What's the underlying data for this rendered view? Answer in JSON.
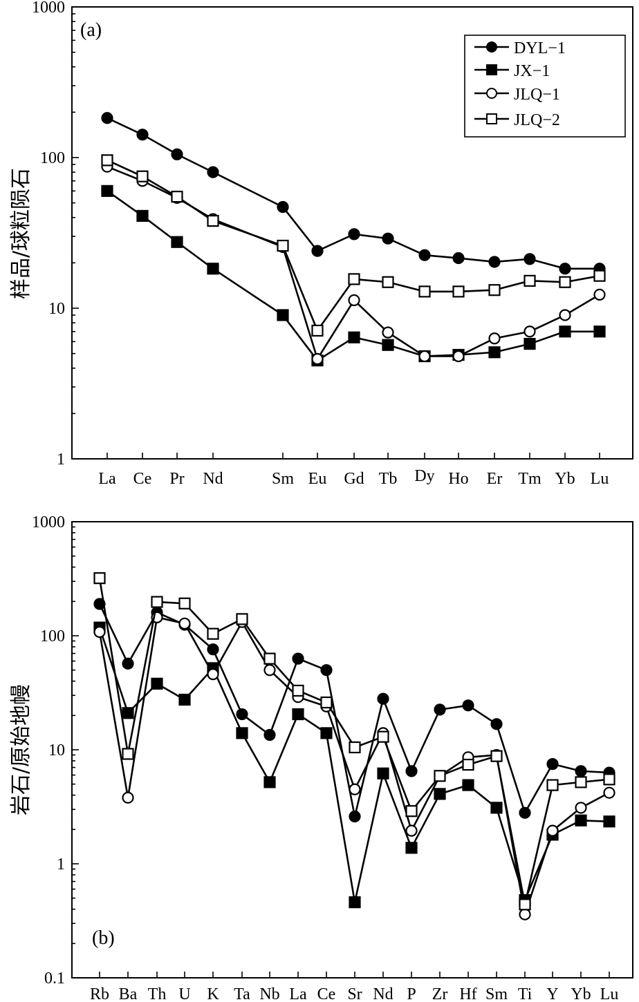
{
  "chart_data": [
    {
      "type": "line",
      "panel_label": "(a)",
      "ylabel": "样品/球粒陨石",
      "xlabel": "",
      "yscale": "log",
      "ylim": [
        1,
        1000
      ],
      "ytick_labels": [
        "1",
        "10",
        "100",
        "1000"
      ],
      "legend_position": "top-right",
      "categories": [
        "La",
        "Ce",
        "Pr",
        "Nd",
        "",
        "Sm",
        "Eu",
        "Gd",
        "Tb",
        "Dy",
        "Ho",
        "Er",
        "Tm",
        "Yb",
        "Lu"
      ],
      "series": [
        {
          "name": "DYL−1",
          "marker": "filled-circle",
          "values": [
            183,
            142,
            105,
            80,
            null,
            47,
            24,
            31,
            29,
            22.5,
            21.5,
            20.3,
            21.2,
            18.3,
            18.3
          ]
        },
        {
          "name": "JX−1",
          "marker": "filled-square",
          "values": [
            60,
            41,
            27.5,
            18.3,
            null,
            9,
            4.5,
            6.4,
            5.7,
            4.8,
            4.9,
            5.1,
            5.8,
            7,
            7
          ]
        },
        {
          "name": "JLQ−1",
          "marker": "open-circle",
          "values": [
            87,
            70,
            54,
            39,
            null,
            25.5,
            4.6,
            11.3,
            6.9,
            4.8,
            4.8,
            6.3,
            7,
            9,
            12.3
          ]
        },
        {
          "name": "JLQ−2",
          "marker": "open-square",
          "values": [
            96,
            75,
            55,
            38,
            null,
            26,
            7.1,
            15.6,
            14.9,
            12.9,
            12.9,
            13.2,
            15.2,
            14.9,
            16.4
          ]
        }
      ]
    },
    {
      "type": "line",
      "panel_label": "(b)",
      "ylabel": "岩石/原始地幔",
      "xlabel": "",
      "yscale": "log",
      "ylim": [
        0.1,
        1000
      ],
      "ytick_labels": [
        "0.1",
        "1",
        "10",
        "100",
        "1000"
      ],
      "categories": [
        "Rb",
        "Ba",
        "Th",
        "U",
        "K",
        "Ta",
        "Nb",
        "La",
        "Ce",
        "Sr",
        "Nd",
        "P",
        "Zr",
        "Hf",
        "Sm",
        "Ti",
        "Y",
        "Yb",
        "Lu"
      ],
      "series": [
        {
          "name": "DYL−1",
          "marker": "filled-circle",
          "values": [
            190,
            57,
            160,
            125,
            76,
            20.5,
            13.5,
            63,
            50,
            2.6,
            28,
            6.5,
            22.5,
            24.5,
            16.8,
            2.8,
            7.5,
            6.5,
            6.3
          ]
        },
        {
          "name": "JX−1",
          "marker": "filled-square",
          "values": [
            118,
            21,
            38,
            27.5,
            52,
            14,
            5.2,
            20.5,
            14,
            0.46,
            6.2,
            1.38,
            4.1,
            4.9,
            3.1,
            0.48,
            1.8,
            2.4,
            2.35
          ]
        },
        {
          "name": "JLQ−1",
          "marker": "open-circle",
          "values": [
            108,
            3.8,
            145,
            128,
            46,
            132,
            50,
            29,
            24,
            4.5,
            14,
            1.95,
            5.9,
            8.6,
            9,
            0.36,
            1.95,
            3.1,
            4.2
          ]
        },
        {
          "name": "JLQ−2",
          "marker": "open-square",
          "values": [
            320,
            9.2,
            198,
            192,
            104,
            140,
            63,
            33,
            26,
            10.5,
            13,
            2.9,
            5.9,
            7.4,
            8.8,
            0.44,
            4.9,
            5.2,
            5.5
          ]
        }
      ]
    }
  ]
}
